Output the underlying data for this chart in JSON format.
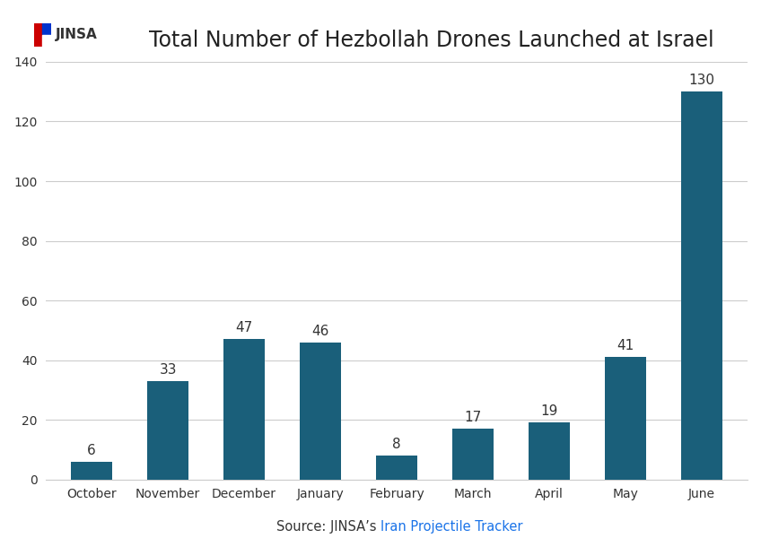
{
  "title": "Total Number of Hezbollah Drones Launched at Israel",
  "categories": [
    "October",
    "November",
    "December",
    "January",
    "February",
    "March",
    "April",
    "May",
    "June"
  ],
  "values": [
    6,
    33,
    47,
    46,
    8,
    17,
    19,
    41,
    130
  ],
  "bar_color": "#1a5f7a",
  "ylim": [
    0,
    140
  ],
  "yticks": [
    0,
    20,
    40,
    60,
    80,
    100,
    120,
    140
  ],
  "grid_color": "#cccccc",
  "background_color": "#ffffff",
  "title_fontsize": 17,
  "label_fontsize": 11,
  "tick_fontsize": 10,
  "source_text": "Source: JINSA’s ",
  "source_link": "Iran Projectile Tracker",
  "jinsa_label": "JINSA",
  "border_color": "#cccccc"
}
